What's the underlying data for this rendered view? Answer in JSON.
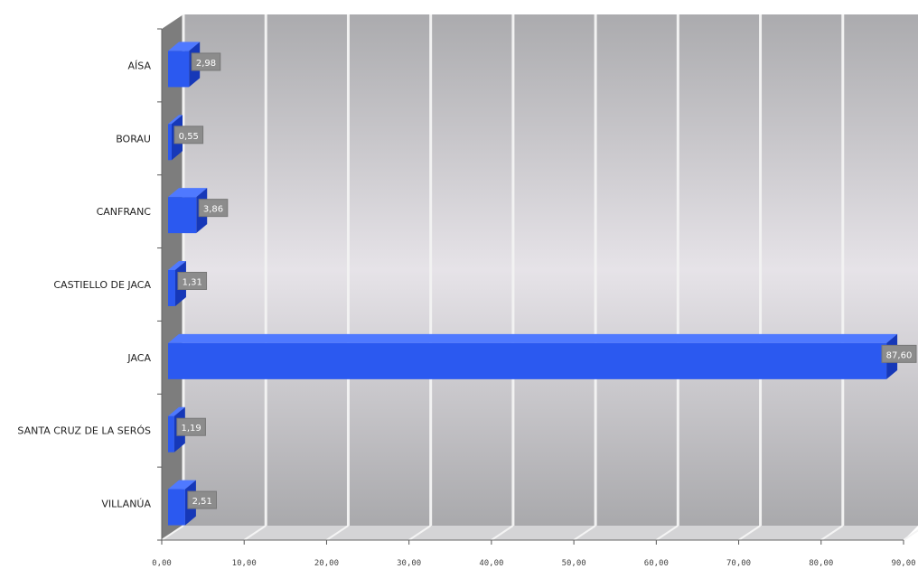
{
  "chart_data": {
    "type": "bar",
    "orientation": "horizontal",
    "style": "3d",
    "categories": [
      "AÍSA",
      "BORAU",
      "CANFRANC",
      "CASTIELLO DE JACA",
      "JACA",
      "SANTA CRUZ DE LA SERÓS",
      "VILLANÚA"
    ],
    "values": [
      2.98,
      0.55,
      3.86,
      1.31,
      87.6,
      1.19,
      2.51
    ],
    "value_labels": [
      "2,98",
      "0,55",
      "3,86",
      "1,31",
      "87,60",
      "1,19",
      "2,51"
    ],
    "x_ticks": [
      "0,00",
      "10,00",
      "20,00",
      "30,00",
      "40,00",
      "50,00",
      "60,00",
      "70,00",
      "80,00",
      "90,00"
    ],
    "xlim": [
      0,
      90
    ],
    "title": "",
    "xlabel": "",
    "ylabel": "",
    "grid": true,
    "legend": "none",
    "colors": {
      "bar": "#2b59f0",
      "bar_top": "#4f79ff",
      "bar_side": "#1638b8",
      "wall_light": "#e6e3e8",
      "wall_dark": "#a8a8aa",
      "side_wall": "#7d7d7d",
      "grid": "#f2f2f2",
      "label_box": "#8c8c8c"
    }
  }
}
